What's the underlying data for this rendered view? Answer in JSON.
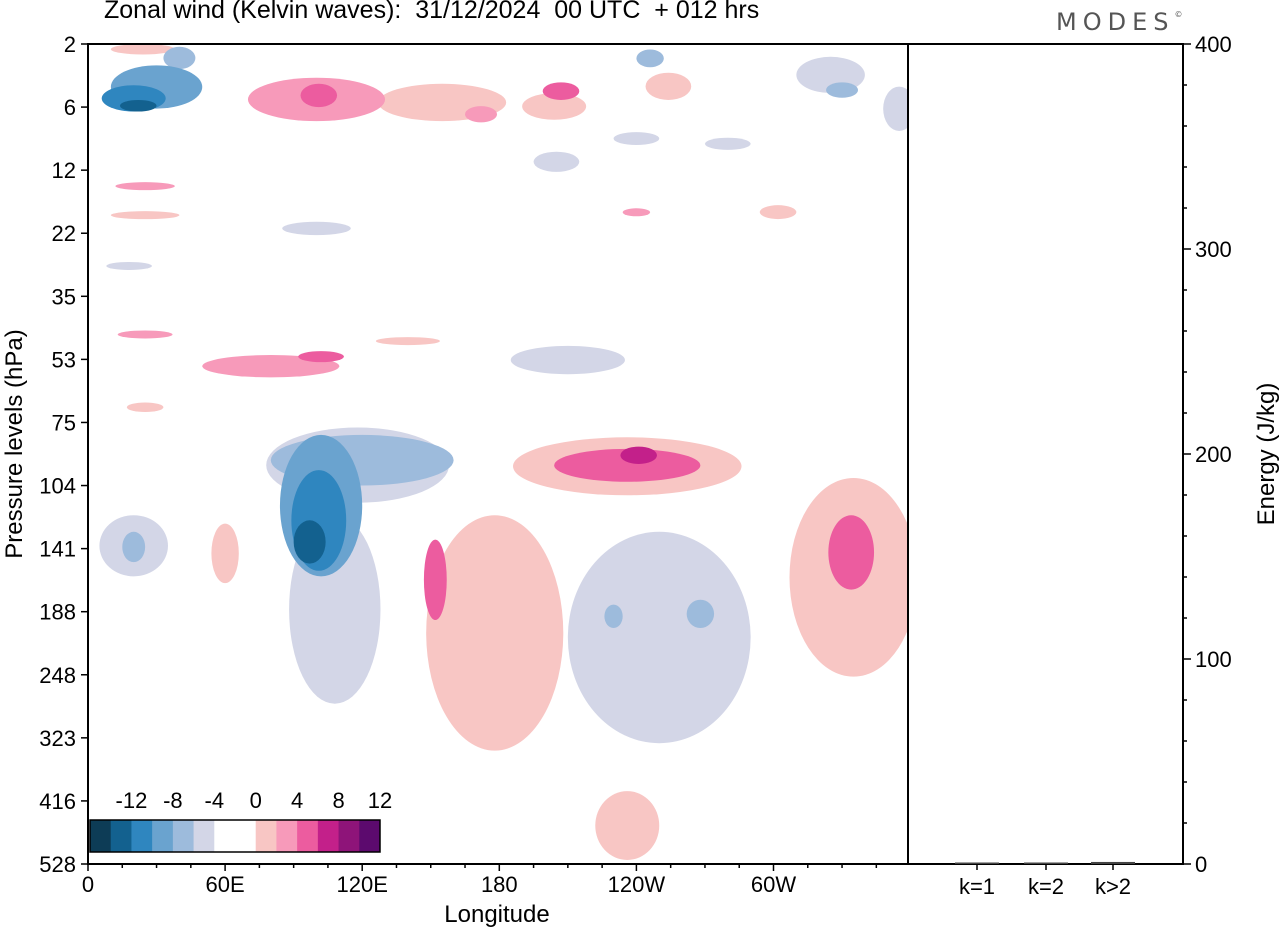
{
  "header": {
    "title": "Zonal wind (Kelvin waves):  31/12/2024  00 UTC  + 012 hrs",
    "logo": "MODES",
    "logo_mark": "©"
  },
  "chart_data": [
    {
      "type": "heatmap",
      "title": "Zonal wind (Kelvin waves):  31/12/2024  00 UTC  + 012 hrs",
      "xlabel": "Longitude",
      "ylabel": "Pressure levels (hPa)",
      "x_ticks": [
        "0",
        "60E",
        "120E",
        "180",
        "120W",
        "60W"
      ],
      "y_ticks": [
        "2",
        "6",
        "12",
        "22",
        "35",
        "53",
        "75",
        "104",
        "141",
        "188",
        "248",
        "323",
        "416",
        "528"
      ],
      "colorbar": {
        "labels": [
          "-12",
          "-8",
          "-4",
          "0",
          "4",
          "8",
          "12"
        ],
        "colors": [
          "#0d3c56",
          "#13618f",
          "#2f86bf",
          "#6aa3cf",
          "#9dbbdc",
          "#d3d6e7",
          "#ffffff",
          "#ffffff",
          "#f8c6c4",
          "#f79aba",
          "#ec5c9f",
          "#c3208a",
          "#8e1479",
          "#5c0a6e"
        ]
      },
      "blobs": [
        {
          "lon": 30,
          "lev": 4.5,
          "rx": 20,
          "ry": 1.6,
          "value": -7
        },
        {
          "lon": 20,
          "lev": 5.2,
          "rx": 14,
          "ry": 1.1,
          "value": -9
        },
        {
          "lon": 22,
          "lev": 5.8,
          "rx": 8,
          "ry": 0.5,
          "value": -11
        },
        {
          "lon": 40,
          "lev": 2.6,
          "rx": 7,
          "ry": 0.5,
          "value": -6
        },
        {
          "lon": 24,
          "lev": 2.1,
          "rx": 14,
          "ry": 0.3,
          "value": 3
        },
        {
          "lon": 100,
          "lev": 5.3,
          "rx": 30,
          "ry": 1.7,
          "value": 4
        },
        {
          "lon": 101,
          "lev": 5.0,
          "rx": 8,
          "ry": 1.0,
          "value": 7
        },
        {
          "lon": 155,
          "lev": 5.5,
          "rx": 28,
          "ry": 1.5,
          "value": 3
        },
        {
          "lon": 204,
          "lev": 5.8,
          "rx": 14,
          "ry": 1.1,
          "value": 3
        },
        {
          "lon": 207,
          "lev": 4.6,
          "rx": 8,
          "ry": 0.7,
          "value": 6
        },
        {
          "lon": 172,
          "lev": 6.5,
          "rx": 7,
          "ry": 0.6,
          "value": 4
        },
        {
          "lon": 254,
          "lev": 4.3,
          "rx": 10,
          "ry": 1.0,
          "value": 3
        },
        {
          "lon": 246,
          "lev": 2.6,
          "rx": 6,
          "ry": 0.4,
          "value": -6
        },
        {
          "lon": 325,
          "lev": 3.6,
          "rx": 15,
          "ry": 1.1,
          "value": -3
        },
        {
          "lon": 330,
          "lev": 4.5,
          "rx": 7,
          "ry": 0.6,
          "value": -6
        },
        {
          "lon": 355,
          "lev": 6.0,
          "rx": 7,
          "ry": 1.8,
          "value": -3
        },
        {
          "lon": 240,
          "lev": 8.5,
          "rx": 10,
          "ry": 0.6,
          "value": -3
        },
        {
          "lon": 280,
          "lev": 9.0,
          "rx": 10,
          "ry": 0.6,
          "value": -3
        },
        {
          "lon": 205,
          "lev": 11.0,
          "rx": 10,
          "ry": 1.2,
          "value": -3
        },
        {
          "lon": 25,
          "lev": 14.0,
          "rx": 13,
          "ry": 0.4,
          "value": 4
        },
        {
          "lon": 25,
          "lev": 18.5,
          "rx": 15,
          "ry": 0.4,
          "value": 3
        },
        {
          "lon": 100,
          "lev": 21.0,
          "rx": 15,
          "ry": 1.3,
          "value": -3
        },
        {
          "lon": 302,
          "lev": 18.0,
          "rx": 8,
          "ry": 1.2,
          "value": 3
        },
        {
          "lon": 240,
          "lev": 18.0,
          "rx": 6,
          "ry": 0.6,
          "value": 4
        },
        {
          "lon": 18,
          "lev": 28.0,
          "rx": 10,
          "ry": 0.4,
          "value": -3
        },
        {
          "lon": 25,
          "lev": 45.0,
          "rx": 12,
          "ry": 0.9,
          "value": 4
        },
        {
          "lon": 80,
          "lev": 55.0,
          "rx": 30,
          "ry": 3.5,
          "value": 4
        },
        {
          "lon": 102,
          "lev": 52.0,
          "rx": 10,
          "ry": 1.8,
          "value": 7
        },
        {
          "lon": 140,
          "lev": 47.0,
          "rx": 14,
          "ry": 1.2,
          "value": 3
        },
        {
          "lon": 210,
          "lev": 53.0,
          "rx": 25,
          "ry": 4.5,
          "value": -3
        },
        {
          "lon": 25,
          "lev": 69.0,
          "rx": 8,
          "ry": 1.8,
          "value": 3
        },
        {
          "lon": 118,
          "lev": 95.0,
          "rx": 40,
          "ry": 18.0,
          "value": -3
        },
        {
          "lon": 120,
          "lev": 92.0,
          "rx": 40,
          "ry": 12.0,
          "value": -6
        },
        {
          "lon": 102,
          "lev": 120.0,
          "rx": 18,
          "ry": 40.0,
          "value": -7
        },
        {
          "lon": 101,
          "lev": 126.0,
          "rx": 12,
          "ry": 30.0,
          "value": -10
        },
        {
          "lon": 97,
          "lev": 137.0,
          "rx": 7,
          "ry": 14.0,
          "value": -12
        },
        {
          "lon": 108,
          "lev": 200.0,
          "rx": 20,
          "ry": 80.0,
          "value": -3
        },
        {
          "lon": 236,
          "lev": 95.0,
          "rx": 50,
          "ry": 14.0,
          "value": 3
        },
        {
          "lon": 236,
          "lev": 94.0,
          "rx": 32,
          "ry": 8.0,
          "value": 6
        },
        {
          "lon": 241,
          "lev": 89.0,
          "rx": 8,
          "ry": 4.0,
          "value": 9
        },
        {
          "lon": 178,
          "lev": 230.0,
          "rx": 30,
          "ry": 110.0,
          "value": 3
        },
        {
          "lon": 152,
          "lev": 165.0,
          "rx": 5,
          "ry": 30.0,
          "value": 6
        },
        {
          "lon": 250,
          "lev": 230.0,
          "rx": 40,
          "ry": 100.0,
          "value": -3
        },
        {
          "lon": 230,
          "lev": 192.0,
          "rx": 4,
          "ry": 10.0,
          "value": -6
        },
        {
          "lon": 268,
          "lev": 190.0,
          "rx": 6,
          "ry": 12.0,
          "value": -6
        },
        {
          "lon": 335,
          "lev": 175.0,
          "rx": 28,
          "ry": 75.0,
          "value": 3
        },
        {
          "lon": 334,
          "lev": 145.0,
          "rx": 10,
          "ry": 25.0,
          "value": 7
        },
        {
          "lon": 20,
          "lev": 140.0,
          "rx": 15,
          "ry": 20.0,
          "value": -3
        },
        {
          "lon": 20,
          "lev": 140.0,
          "rx": 5,
          "ry": 10.0,
          "value": -6
        },
        {
          "lon": 60,
          "lev": 145.0,
          "rx": 6,
          "ry": 20.0,
          "value": 3
        },
        {
          "lon": 236,
          "lev": 460.0,
          "rx": 14,
          "ry": 60.0,
          "value": 3
        }
      ]
    },
    {
      "type": "bar",
      "ylabel": "Energy (J/kg)",
      "categories": [
        "k=1",
        "k=2",
        "k>2"
      ],
      "values": [
        0.5,
        0.5,
        1.0
      ],
      "ylim": [
        0,
        400
      ],
      "y_ticks": [
        "0",
        "100",
        "200",
        "300",
        "400"
      ]
    }
  ]
}
